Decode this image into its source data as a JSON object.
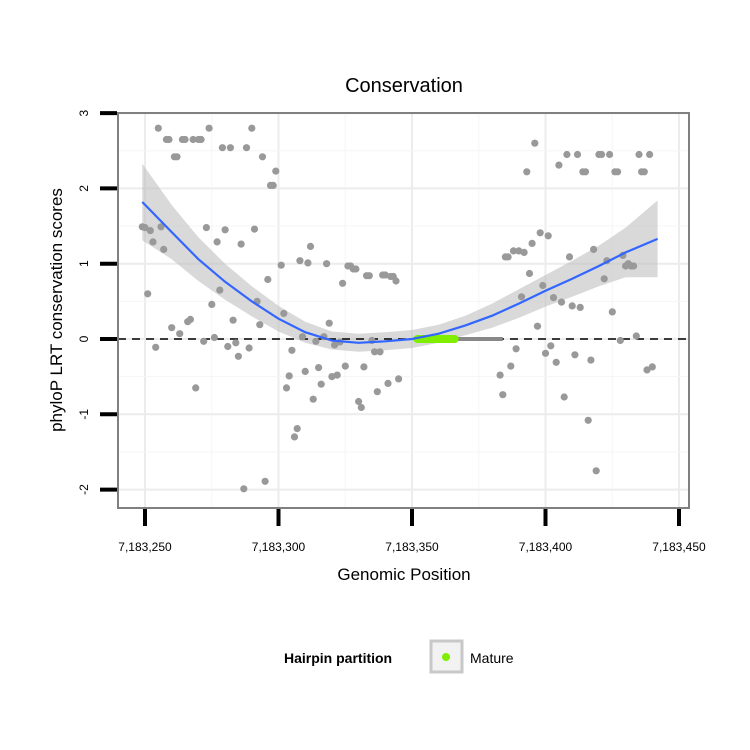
{
  "chart_data": {
    "type": "scatter",
    "title": "Conservation",
    "xlabel": "Genomic Position",
    "ylabel": "phyloP LRT conservation scores",
    "xlim": [
      7183242,
      7183450
    ],
    "ylim": [
      -2.2,
      3.05
    ],
    "x_ticks": [
      {
        "value": 7183250,
        "label": "7,183,250"
      },
      {
        "value": 7183300,
        "label": "7,183,300"
      },
      {
        "value": 7183350,
        "label": "7,183,350"
      },
      {
        "value": 7183400,
        "label": "7,183,400"
      },
      {
        "value": 7183450,
        "label": "7,183,450"
      }
    ],
    "y_ticks": [
      {
        "value": -2,
        "label": "-2"
      },
      {
        "value": -1,
        "label": "-1"
      },
      {
        "value": 0,
        "label": "0"
      },
      {
        "value": 1,
        "label": "1"
      },
      {
        "value": 2,
        "label": "2"
      },
      {
        "value": 3,
        "label": "3"
      }
    ],
    "reference_line": {
      "y": 0,
      "style": "dashed"
    },
    "colors": {
      "points": "#999999",
      "smooth": "#3366ff",
      "ribbon": "#bfbfbf",
      "mature": "#80ee00",
      "panel_border": "#808080",
      "grid": "#ececec"
    },
    "points": [
      [
        7183249,
        1.49
      ],
      [
        7183250,
        1.48
      ],
      [
        7183251,
        0.6
      ],
      [
        7183252,
        1.44
      ],
      [
        7183253,
        1.29
      ],
      [
        7183254,
        -0.11
      ],
      [
        7183255,
        2.8
      ],
      [
        7183256,
        1.49
      ],
      [
        7183257,
        1.19
      ],
      [
        7183258,
        2.65
      ],
      [
        7183259,
        2.65
      ],
      [
        7183260,
        0.15
      ],
      [
        7183261,
        2.42
      ],
      [
        7183262,
        2.42
      ],
      [
        7183263,
        0.07
      ],
      [
        7183264,
        2.65
      ],
      [
        7183265,
        2.65
      ],
      [
        7183266,
        0.23
      ],
      [
        7183267,
        0.26
      ],
      [
        7183268,
        2.65
      ],
      [
        7183269,
        -0.65
      ],
      [
        7183270,
        2.65
      ],
      [
        7183271,
        2.65
      ],
      [
        7183272,
        -0.03
      ],
      [
        7183273,
        1.48
      ],
      [
        7183274,
        2.8
      ],
      [
        7183275,
        0.46
      ],
      [
        7183276,
        0.02
      ],
      [
        7183277,
        1.29
      ],
      [
        7183278,
        0.65
      ],
      [
        7183279,
        2.54
      ],
      [
        7183280,
        1.45
      ],
      [
        7183281,
        -0.1
      ],
      [
        7183282,
        2.54
      ],
      [
        7183283,
        0.25
      ],
      [
        7183284,
        -0.05
      ],
      [
        7183285,
        -0.23
      ],
      [
        7183286,
        1.26
      ],
      [
        7183287,
        -1.99
      ],
      [
        7183288,
        2.54
      ],
      [
        7183289,
        -0.12
      ],
      [
        7183290,
        2.8
      ],
      [
        7183291,
        1.46
      ],
      [
        7183292,
        0.5
      ],
      [
        7183293,
        0.19
      ],
      [
        7183294,
        2.42
      ],
      [
        7183295,
        -1.89
      ],
      [
        7183296,
        0.79
      ],
      [
        7183297,
        2.04
      ],
      [
        7183298,
        2.04
      ],
      [
        7183299,
        2.23
      ],
      [
        7183301,
        0.98
      ],
      [
        7183302,
        0.34
      ],
      [
        7183303,
        -0.65
      ],
      [
        7183304,
        -0.49
      ],
      [
        7183305,
        -0.15
      ],
      [
        7183306,
        -1.3
      ],
      [
        7183307,
        -1.19
      ],
      [
        7183308,
        1.04
      ],
      [
        7183309,
        0.03
      ],
      [
        7183310,
        -0.43
      ],
      [
        7183311,
        1.01
      ],
      [
        7183312,
        1.23
      ],
      [
        7183313,
        -0.8
      ],
      [
        7183314,
        -0.03
      ],
      [
        7183315,
        -0.38
      ],
      [
        7183316,
        -0.6
      ],
      [
        7183317,
        0.03
      ],
      [
        7183318,
        1.0
      ],
      [
        7183319,
        0.21
      ],
      [
        7183320,
        -0.5
      ],
      [
        7183321,
        -0.08
      ],
      [
        7183322,
        -0.48
      ],
      [
        7183323,
        -0.04
      ],
      [
        7183324,
        0.74
      ],
      [
        7183325,
        -0.36
      ],
      [
        7183326,
        0.97
      ],
      [
        7183327,
        0.97
      ],
      [
        7183328,
        0.93
      ],
      [
        7183329,
        0.93
      ],
      [
        7183330,
        -0.83
      ],
      [
        7183331,
        -0.91
      ],
      [
        7183332,
        -0.37
      ],
      [
        7183333,
        0.84
      ],
      [
        7183334,
        0.84
      ],
      [
        7183335,
        -0.02
      ],
      [
        7183336,
        -0.17
      ],
      [
        7183337,
        -0.7
      ],
      [
        7183338,
        -0.17
      ],
      [
        7183339,
        0.85
      ],
      [
        7183340,
        0.85
      ],
      [
        7183341,
        -0.59
      ],
      [
        7183342,
        0.83
      ],
      [
        7183343,
        0.83
      ],
      [
        7183344,
        0.77
      ],
      [
        7183345,
        -0.53
      ],
      [
        7183383,
        -0.48
      ],
      [
        7183384,
        -0.74
      ],
      [
        7183385,
        1.09
      ],
      [
        7183386,
        1.09
      ],
      [
        7183387,
        -0.36
      ],
      [
        7183388,
        1.17
      ],
      [
        7183389,
        -0.13
      ],
      [
        7183390,
        1.17
      ],
      [
        7183391,
        0.56
      ],
      [
        7183392,
        1.15
      ],
      [
        7183393,
        2.22
      ],
      [
        7183394,
        0.87
      ],
      [
        7183395,
        1.27
      ],
      [
        7183396,
        2.6
      ],
      [
        7183397,
        0.17
      ],
      [
        7183398,
        1.41
      ],
      [
        7183399,
        0.71
      ],
      [
        7183400,
        -0.19
      ],
      [
        7183401,
        1.37
      ],
      [
        7183402,
        -0.09
      ],
      [
        7183403,
        0.55
      ],
      [
        7183404,
        -0.31
      ],
      [
        7183405,
        2.31
      ],
      [
        7183406,
        0.49
      ],
      [
        7183407,
        -0.77
      ],
      [
        7183408,
        2.45
      ],
      [
        7183409,
        1.09
      ],
      [
        7183410,
        0.44
      ],
      [
        7183411,
        -0.21
      ],
      [
        7183412,
        2.45
      ],
      [
        7183413,
        0.42
      ],
      [
        7183414,
        2.22
      ],
      [
        7183415,
        2.22
      ],
      [
        7183416,
        -1.08
      ],
      [
        7183417,
        -0.28
      ],
      [
        7183418,
        1.19
      ],
      [
        7183419,
        -1.75
      ],
      [
        7183420,
        2.45
      ],
      [
        7183421,
        2.45
      ],
      [
        7183422,
        0.8
      ],
      [
        7183423,
        1.04
      ],
      [
        7183424,
        2.45
      ],
      [
        7183425,
        0.36
      ],
      [
        7183426,
        2.22
      ],
      [
        7183427,
        2.22
      ],
      [
        7183428,
        -0.02
      ],
      [
        7183429,
        1.11
      ],
      [
        7183430,
        0.97
      ],
      [
        7183431,
        1.0
      ],
      [
        7183432,
        0.97
      ],
      [
        7183433,
        0.97
      ],
      [
        7183434,
        0.04
      ],
      [
        7183435,
        2.45
      ],
      [
        7183436,
        2.22
      ],
      [
        7183437,
        2.22
      ],
      [
        7183438,
        -0.41
      ],
      [
        7183439,
        2.45
      ],
      [
        7183440,
        -0.37
      ]
    ],
    "smooth_line": [
      [
        7183249,
        1.82
      ],
      [
        7183260,
        1.42
      ],
      [
        7183270,
        1.06
      ],
      [
        7183280,
        0.76
      ],
      [
        7183290,
        0.5
      ],
      [
        7183300,
        0.27
      ],
      [
        7183310,
        0.09
      ],
      [
        7183320,
        -0.02
      ],
      [
        7183330,
        -0.05
      ],
      [
        7183340,
        -0.03
      ],
      [
        7183350,
        0.0
      ],
      [
        7183360,
        0.07
      ],
      [
        7183370,
        0.18
      ],
      [
        7183380,
        0.31
      ],
      [
        7183390,
        0.47
      ],
      [
        7183400,
        0.64
      ],
      [
        7183410,
        0.8
      ],
      [
        7183420,
        0.97
      ],
      [
        7183430,
        1.15
      ],
      [
        7183442,
        1.33
      ]
    ],
    "ribbon_upper": [
      [
        7183249,
        2.33
      ],
      [
        7183260,
        1.78
      ],
      [
        7183270,
        1.35
      ],
      [
        7183280,
        1.0
      ],
      [
        7183290,
        0.7
      ],
      [
        7183300,
        0.44
      ],
      [
        7183310,
        0.23
      ],
      [
        7183320,
        0.1
      ],
      [
        7183330,
        0.07
      ],
      [
        7183340,
        0.09
      ],
      [
        7183350,
        0.12
      ],
      [
        7183360,
        0.19
      ],
      [
        7183370,
        0.31
      ],
      [
        7183380,
        0.47
      ],
      [
        7183390,
        0.66
      ],
      [
        7183400,
        0.85
      ],
      [
        7183410,
        1.04
      ],
      [
        7183420,
        1.24
      ],
      [
        7183430,
        1.48
      ],
      [
        7183442,
        1.84
      ]
    ],
    "ribbon_lower": [
      [
        7183249,
        1.31
      ],
      [
        7183260,
        1.06
      ],
      [
        7183270,
        0.77
      ],
      [
        7183280,
        0.52
      ],
      [
        7183290,
        0.3
      ],
      [
        7183300,
        0.1
      ],
      [
        7183310,
        -0.05
      ],
      [
        7183320,
        -0.14
      ],
      [
        7183330,
        -0.17
      ],
      [
        7183340,
        -0.15
      ],
      [
        7183350,
        -0.12
      ],
      [
        7183360,
        -0.05
      ],
      [
        7183370,
        0.05
      ],
      [
        7183380,
        0.15
      ],
      [
        7183390,
        0.28
      ],
      [
        7183400,
        0.43
      ],
      [
        7183410,
        0.56
      ],
      [
        7183420,
        0.7
      ],
      [
        7183430,
        0.82
      ],
      [
        7183442,
        0.82
      ]
    ],
    "mature_segment": {
      "x_start": 7183352,
      "x_end": 7183366,
      "y": 0
    },
    "dark_segment": {
      "x_start": 7183366,
      "x_end": 7183384,
      "y": 0
    },
    "legend": {
      "title": "Hairpin partition",
      "items": [
        {
          "label": "Mature",
          "color": "#80ee00"
        }
      ],
      "position": "bottom"
    }
  }
}
